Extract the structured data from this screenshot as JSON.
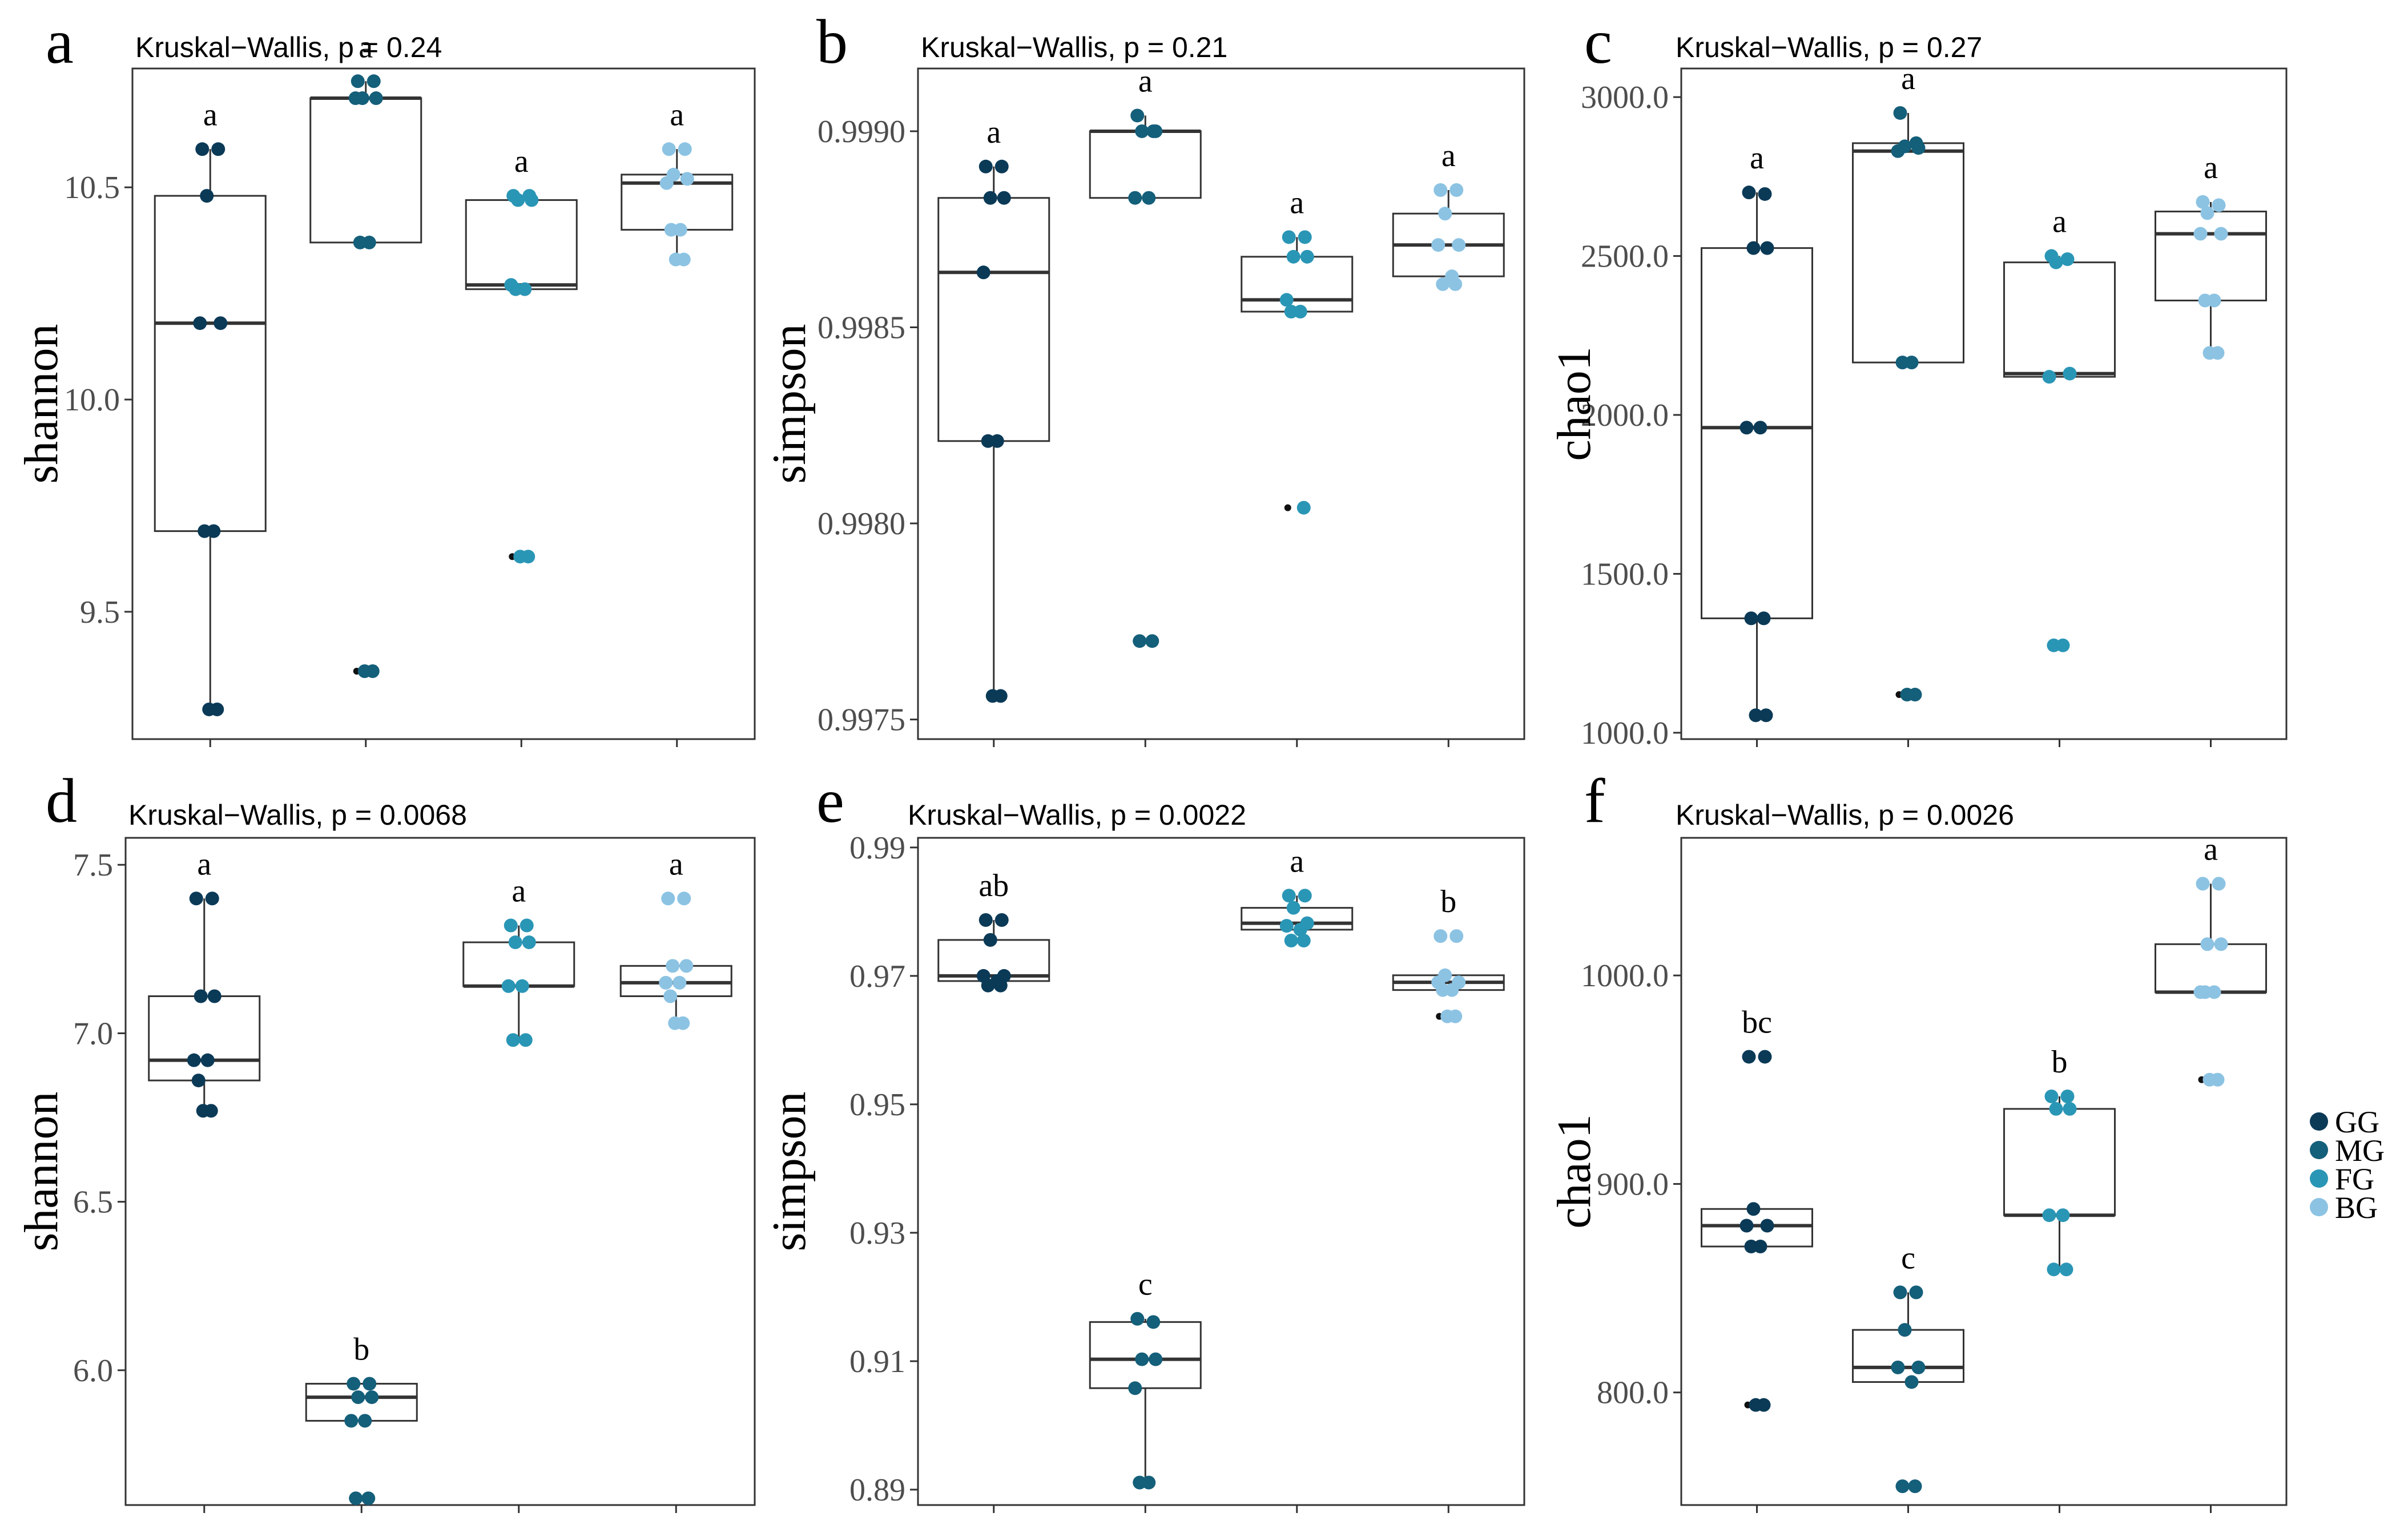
{
  "chart_data": [
    {
      "panel": "a",
      "type": "box",
      "title": "Kruskal−Wallis, p = 0.24",
      "ylabel": "shannon",
      "ylim": [
        9.2,
        10.78
      ],
      "yticks": [
        9.5,
        10.0,
        10.5
      ],
      "groups": [
        {
          "name": "GG",
          "letter": "a",
          "box": [
            9.69,
            10.18,
            10.48
          ],
          "whisker": [
            9.27,
            10.59
          ],
          "outliers": [],
          "points": [
            10.59,
            10.59,
            10.48,
            10.18,
            10.18,
            9.69,
            9.69,
            9.27,
            9.27
          ]
        },
        {
          "name": "MG",
          "letter": "a",
          "box": [
            10.37,
            10.71,
            10.71
          ],
          "whisker": [
            10.37,
            10.75
          ],
          "outliers": [
            9.36
          ],
          "points": [
            10.75,
            10.75,
            10.71,
            10.71,
            10.71,
            10.37,
            10.37,
            9.36,
            9.36
          ]
        },
        {
          "name": "FG",
          "letter": "a",
          "box": [
            10.26,
            10.27,
            10.47
          ],
          "whisker": [
            10.26,
            10.48
          ],
          "outliers": [
            9.63
          ],
          "points": [
            10.48,
            10.48,
            10.47,
            10.47,
            10.27,
            10.26,
            10.26,
            9.63,
            9.63
          ]
        },
        {
          "name": "BG",
          "letter": "a",
          "box": [
            10.4,
            10.51,
            10.53
          ],
          "whisker": [
            10.33,
            10.59
          ],
          "outliers": [],
          "points": [
            10.59,
            10.59,
            10.53,
            10.52,
            10.51,
            10.4,
            10.4,
            10.33,
            10.33
          ]
        }
      ]
    },
    {
      "panel": "b",
      "type": "box",
      "title": "Kruskal−Wallis, p = 0.21",
      "ylabel": "simpson",
      "ylim": [
        0.99745,
        0.99916
      ],
      "yticks": [
        0.9975,
        0.998,
        0.9985,
        0.999
      ],
      "tick_labels": [
        "0.9975",
        "0.9980",
        "0.9985",
        "0.9990"
      ],
      "groups": [
        {
          "name": "GG",
          "letter": "a",
          "box": [
            0.99821,
            0.99864,
            0.99883
          ],
          "whisker": [
            0.99756,
            0.99891
          ],
          "outliers": [],
          "points": [
            0.99891,
            0.99891,
            0.99883,
            0.99883,
            0.99864,
            0.99821,
            0.99821,
            0.99756,
            0.99756
          ]
        },
        {
          "name": "MG",
          "letter": "a",
          "box": [
            0.99883,
            0.999,
            0.999
          ],
          "whisker": [
            0.99883,
            0.99904
          ],
          "outliers": [
            0.9977
          ],
          "points": [
            0.99904,
            0.999,
            0.999,
            0.999,
            0.99883,
            0.99883,
            0.9977,
            0.9977
          ]
        },
        {
          "name": "FG",
          "letter": "a",
          "box": [
            0.99854,
            0.99857,
            0.99868
          ],
          "whisker": [
            0.99854,
            0.99873
          ],
          "outliers": [
            0.99804
          ],
          "points": [
            0.99873,
            0.99873,
            0.99868,
            0.99868,
            0.99857,
            0.99854,
            0.99854,
            0.99804
          ]
        },
        {
          "name": "BG",
          "letter": "a",
          "box": [
            0.99863,
            0.99871,
            0.99879
          ],
          "whisker": [
            0.99861,
            0.99885
          ],
          "outliers": [],
          "points": [
            0.99885,
            0.99885,
            0.99879,
            0.99871,
            0.99871,
            0.99863,
            0.99861,
            0.99861
          ]
        }
      ]
    },
    {
      "panel": "c",
      "type": "box",
      "title": "Kruskal−Wallis, p = 0.27",
      "ylabel": "chao1",
      "ylim": [
        980,
        3090
      ],
      "yticks": [
        1000,
        1500,
        2000,
        2500,
        3000
      ],
      "groups": [
        {
          "name": "GG",
          "letter": "a",
          "box": [
            1360,
            1960,
            2525
          ],
          "whisker": [
            1055,
            2700
          ],
          "outliers": [],
          "points": [
            2700,
            2695,
            2525,
            2525,
            1960,
            1960,
            1360,
            1360,
            1055,
            1055
          ]
        },
        {
          "name": "MG",
          "letter": "a",
          "box": [
            2165,
            2830,
            2855
          ],
          "whisker": [
            2165,
            2950
          ],
          "outliers": [
            1120
          ],
          "points": [
            2950,
            2855,
            2845,
            2840,
            2830,
            2165,
            2165,
            1120,
            1120
          ]
        },
        {
          "name": "FG",
          "letter": "a",
          "box": [
            2120,
            2130,
            2480
          ],
          "whisker": [
            2120,
            2500
          ],
          "outliers": [
            1275
          ],
          "points": [
            2500,
            2490,
            2480,
            2130,
            2120,
            1275,
            1275
          ]
        },
        {
          "name": "BG",
          "letter": "a",
          "box": [
            2360,
            2570,
            2640
          ],
          "whisker": [
            2195,
            2670
          ],
          "outliers": [],
          "points": [
            2670,
            2660,
            2635,
            2570,
            2570,
            2360,
            2360,
            2195,
            2195
          ]
        }
      ]
    },
    {
      "panel": "d",
      "type": "box",
      "title": "Kruskal−Wallis, p = 0.0068",
      "ylabel": "shannon",
      "ylim": [
        5.6,
        7.58
      ],
      "yticks": [
        6.0,
        6.5,
        7.0,
        7.5
      ],
      "groups": [
        {
          "name": "GG",
          "letter": "a",
          "box": [
            6.86,
            6.92,
            7.11
          ],
          "whisker": [
            6.77,
            7.4
          ],
          "outliers": [],
          "points": [
            7.4,
            7.4,
            7.11,
            7.11,
            6.92,
            6.92,
            6.86,
            6.77,
            6.77
          ]
        },
        {
          "name": "MG",
          "letter": "b",
          "box": [
            5.85,
            5.92,
            5.96
          ],
          "whisker": [
            5.85,
            5.96
          ],
          "outliers": [
            5.62
          ],
          "points": [
            5.96,
            5.96,
            5.92,
            5.92,
            5.85,
            5.85,
            5.62,
            5.62
          ]
        },
        {
          "name": "FG",
          "letter": "a",
          "box": [
            7.14,
            7.14,
            7.27
          ],
          "whisker": [
            6.98,
            7.32
          ],
          "outliers": [],
          "points": [
            7.32,
            7.32,
            7.27,
            7.27,
            7.14,
            7.14,
            6.98,
            6.98
          ]
        },
        {
          "name": "BG",
          "letter": "a",
          "box": [
            7.11,
            7.15,
            7.2
          ],
          "whisker": [
            7.03,
            7.2
          ],
          "outliers": [
            7.4
          ],
          "points": [
            7.4,
            7.4,
            7.2,
            7.2,
            7.15,
            7.15,
            7.11,
            7.03,
            7.03
          ]
        }
      ]
    },
    {
      "panel": "e",
      "type": "box",
      "title": "Kruskal−Wallis, p = 0.0022",
      "ylabel": "simpson",
      "ylim": [
        0.8876,
        0.9915
      ],
      "yticks": [
        0.89,
        0.91,
        0.93,
        0.95,
        0.97,
        0.99
      ],
      "tick_labels": [
        "0.89",
        "0.91",
        "0.93",
        "0.95",
        "0.97",
        "0.99"
      ],
      "groups": [
        {
          "name": "GG",
          "letter": "ab",
          "box": [
            0.9692,
            0.97,
            0.9756
          ],
          "whisker": [
            0.9692,
            0.9787
          ],
          "outliers": [],
          "points": [
            0.9787,
            0.9787,
            0.9756,
            0.97,
            0.97,
            0.9692,
            0.9685,
            0.9685
          ]
        },
        {
          "name": "MG",
          "letter": "c",
          "box": [
            0.9058,
            0.9103,
            0.9161
          ],
          "whisker": [
            0.8911,
            0.9166
          ],
          "outliers": [],
          "points": [
            0.9166,
            0.9161,
            0.9103,
            0.9103,
            0.9058,
            0.8911,
            0.8911
          ]
        },
        {
          "name": "FG",
          "letter": "a",
          "box": [
            0.9772,
            0.9782,
            0.9806
          ],
          "whisker": [
            0.9772,
            0.9825
          ],
          "outliers": [],
          "points": [
            0.9825,
            0.9825,
            0.9806,
            0.9782,
            0.9778,
            0.9772,
            0.9755,
            0.9755
          ]
        },
        {
          "name": "BG",
          "letter": "b",
          "box": [
            0.9678,
            0.969,
            0.9701
          ],
          "whisker": [
            0.9678,
            0.9701
          ],
          "outliers": [
            0.9762,
            0.9637
          ],
          "points": [
            0.9762,
            0.9762,
            0.9701,
            0.969,
            0.969,
            0.9678,
            0.9678,
            0.9637,
            0.9637
          ]
        }
      ]
    },
    {
      "panel": "f",
      "type": "box",
      "title": "Kruskal−Wallis, p = 0.0026",
      "ylabel": "chao1",
      "ylim": [
        746,
        1066
      ],
      "yticks": [
        800,
        900,
        1000
      ],
      "groups": [
        {
          "name": "GG",
          "letter": "bc",
          "box": [
            870,
            880,
            888
          ],
          "whisker": [
            870,
            888
          ],
          "outliers": [
            961,
            794
          ],
          "points": [
            961,
            961,
            888,
            880,
            880,
            870,
            870,
            794,
            794
          ]
        },
        {
          "name": "MG",
          "letter": "c",
          "box": [
            805,
            812,
            830
          ],
          "whisker": [
            805,
            848
          ],
          "outliers": [
            755
          ],
          "points": [
            848,
            848,
            830,
            812,
            812,
            805,
            755,
            755
          ]
        },
        {
          "name": "FG",
          "letter": "b",
          "box": [
            885,
            885,
            936
          ],
          "whisker": [
            859,
            942
          ],
          "outliers": [],
          "points": [
            942,
            942,
            936,
            936,
            885,
            885,
            859,
            859
          ]
        },
        {
          "name": "BG",
          "letter": "a",
          "box": [
            992,
            992,
            1015
          ],
          "whisker": [
            992,
            1044
          ],
          "outliers": [
            950
          ],
          "points": [
            1044,
            1044,
            1015,
            1015,
            992,
            992,
            992,
            950,
            950
          ]
        }
      ]
    }
  ],
  "legend": [
    {
      "label": "GG",
      "color": "#0b3a57"
    },
    {
      "label": "MG",
      "color": "#145f7a"
    },
    {
      "label": "FG",
      "color": "#2a96b6"
    },
    {
      "label": "BG",
      "color": "#8cc3e3"
    }
  ]
}
